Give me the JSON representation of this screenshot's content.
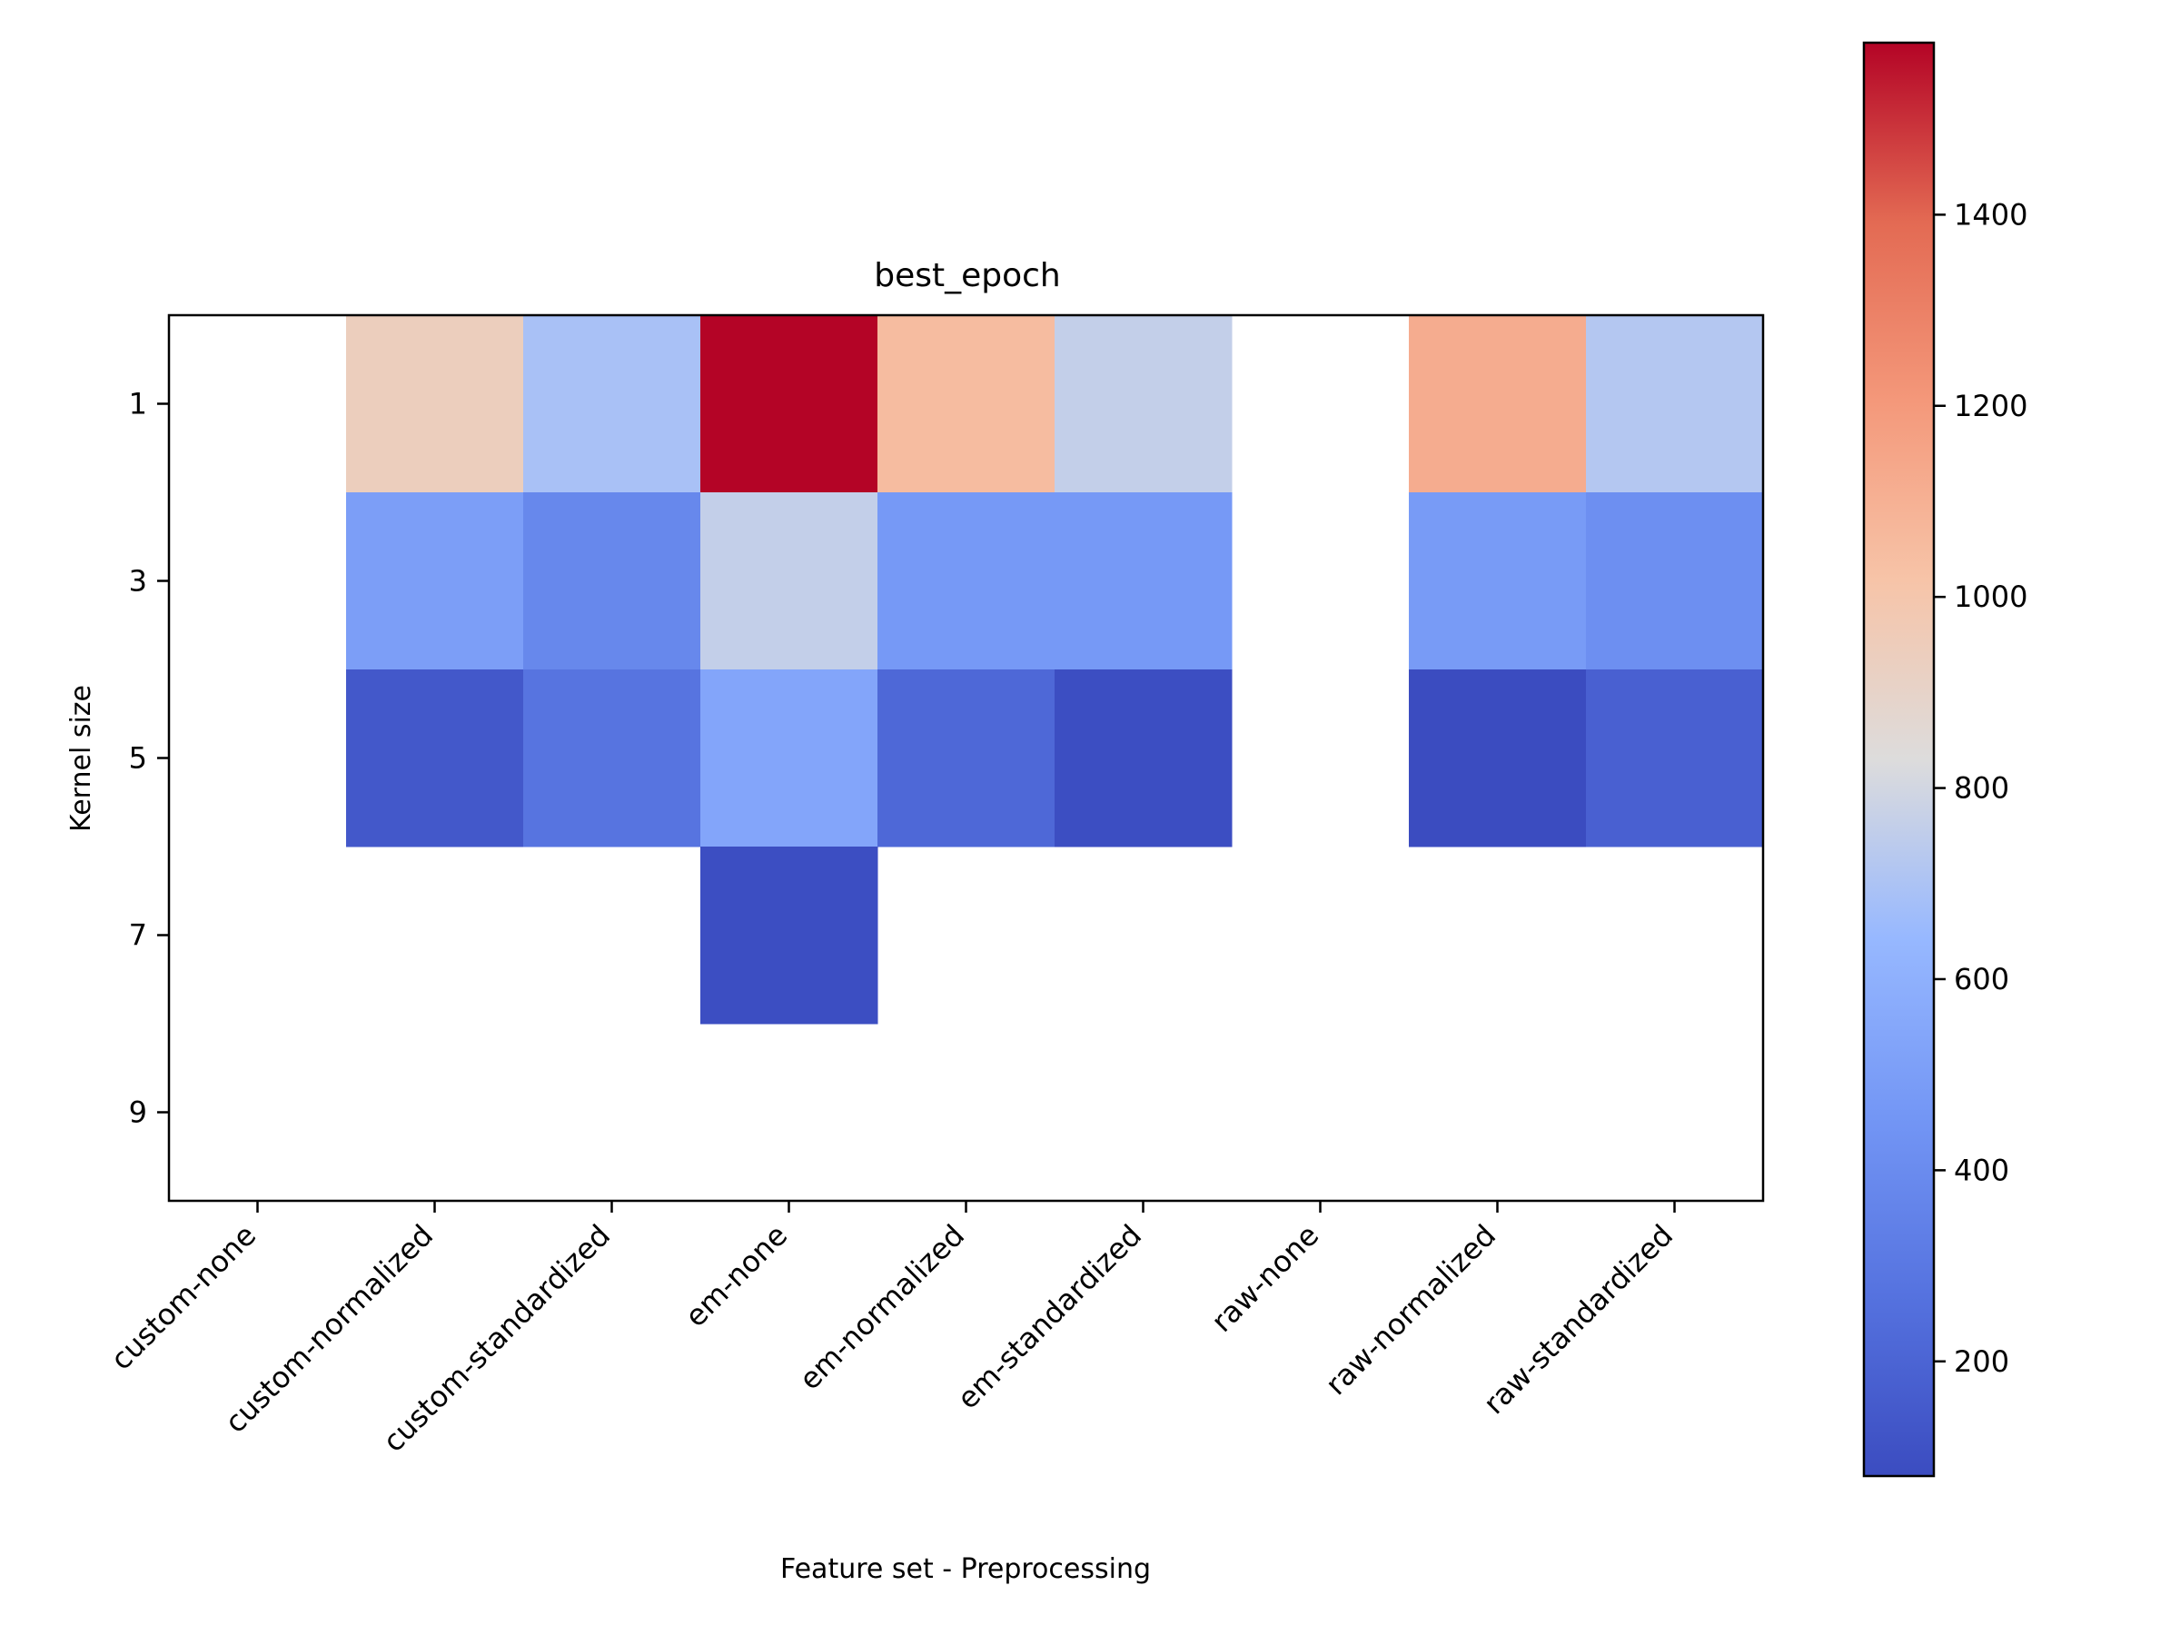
{
  "chart_data": {
    "type": "heatmap",
    "title": "best_epoch",
    "xlabel": "Feature set - Preprocessing",
    "ylabel": "Kernel size",
    "x_categories": [
      "custom-none",
      "custom-normalized",
      "custom-standardized",
      "em-none",
      "em-normalized",
      "em-standardized",
      "raw-none",
      "raw-normalized",
      "raw-standardized"
    ],
    "y_categories": [
      "1",
      "3",
      "5",
      "7",
      "9"
    ],
    "values": [
      [
        null,
        940,
        690,
        1580,
        1050,
        760,
        null,
        1120,
        720
      ],
      [
        null,
        500,
        380,
        760,
        470,
        470,
        null,
        480,
        420
      ],
      [
        null,
        140,
        280,
        540,
        220,
        90,
        null,
        80,
        180
      ],
      [
        null,
        null,
        null,
        90,
        null,
        null,
        null,
        null,
        null
      ],
      [
        null,
        null,
        null,
        null,
        null,
        null,
        null,
        null,
        null
      ]
    ],
    "colormap": "coolwarm",
    "missing_color": "#ffffff",
    "colorbar": {
      "range": [
        80,
        1580
      ],
      "ticks": [
        200,
        400,
        600,
        800,
        1000,
        1200,
        1400
      ]
    }
  }
}
